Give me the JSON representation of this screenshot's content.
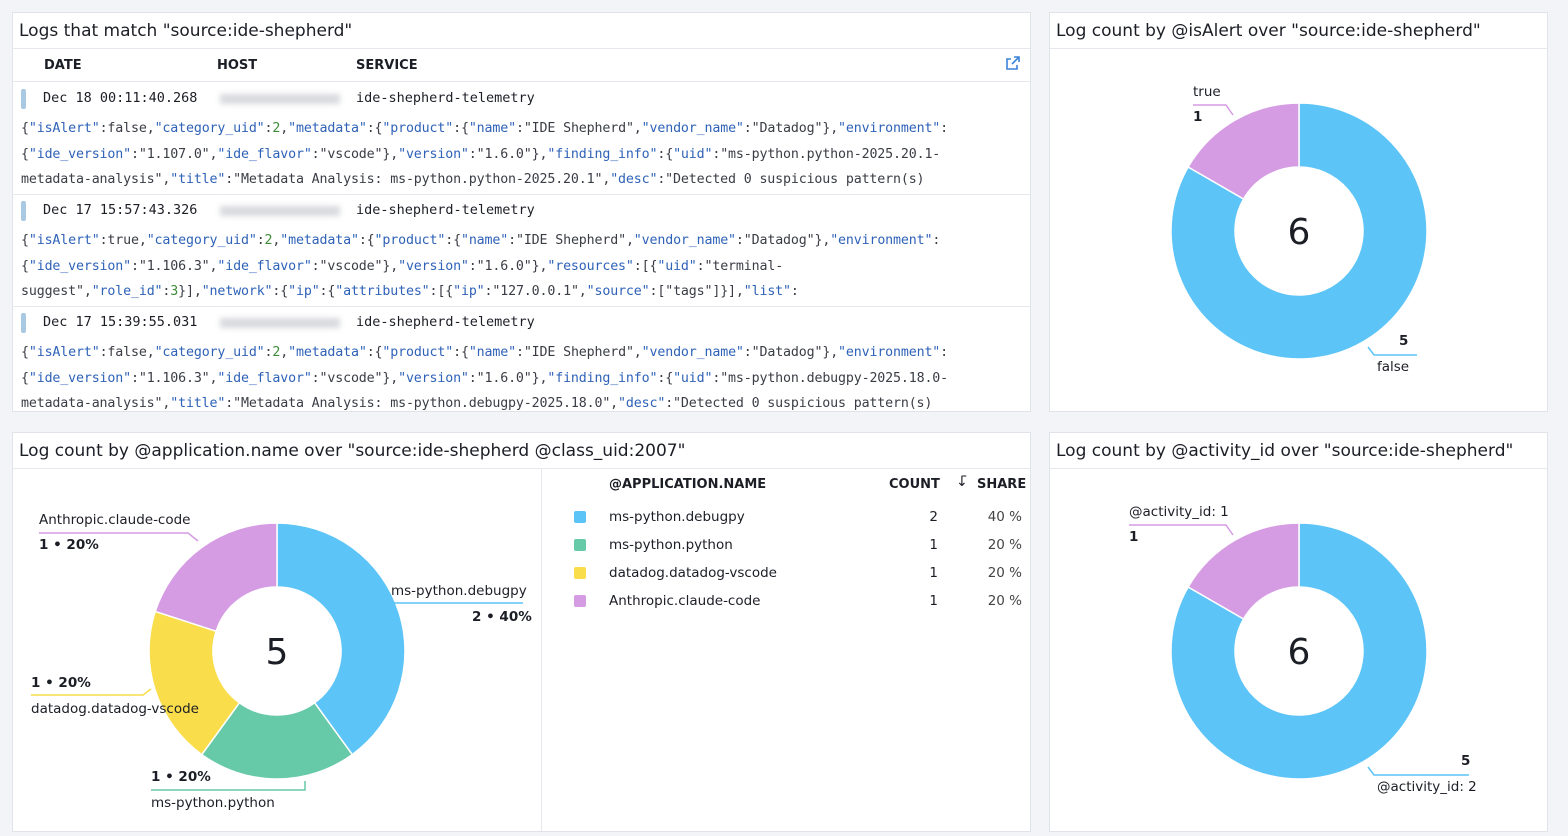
{
  "logs_panel": {
    "title": "Logs that match \"source:ide-shepherd\"",
    "columns": [
      "DATE",
      "HOST",
      "SERVICE"
    ],
    "external_icon": "external-link-icon",
    "rows": [
      {
        "date": "Dec 18 00:11:40.268",
        "service": "ide-shepherd-telemetry",
        "lines": [
          "{\"isAlert\":false,\"category_uid\":2,\"metadata\":{\"product\":{\"name\":\"IDE Shepherd\",\"vendor_name\":\"Datadog\"},\"environment\":",
          "{\"ide_version\":\"1.107.0\",\"ide_flavor\":\"vscode\"},\"version\":\"1.6.0\"},\"finding_info\":{\"uid\":\"ms-python.python-2025.20.1-",
          "metadata-analysis\",\"title\":\"Metadata Analysis: ms-python.python-2025.20.1\",\"desc\":\"Detected 0 suspicious pattern(s)"
        ]
      },
      {
        "date": "Dec 17 15:57:43.326",
        "service": "ide-shepherd-telemetry",
        "lines": [
          "{\"isAlert\":true,\"category_uid\":2,\"metadata\":{\"product\":{\"name\":\"IDE Shepherd\",\"vendor_name\":\"Datadog\"},\"environment\":",
          "{\"ide_version\":\"1.106.3\",\"ide_flavor\":\"vscode\"},\"version\":\"1.6.0\"},\"resources\":[{\"uid\":\"terminal-",
          "suggest\",\"role_id\":3}],\"network\":{\"ip\":{\"attributes\":[{\"ip\":\"127.0.0.1\",\"source\":[\"tags\"]}],\"list\":"
        ]
      },
      {
        "date": "Dec 17 15:39:55.031",
        "service": "ide-shepherd-telemetry",
        "lines": [
          "{\"isAlert\":false,\"category_uid\":2,\"metadata\":{\"product\":{\"name\":\"IDE Shepherd\",\"vendor_name\":\"Datadog\"},\"environment\":",
          "{\"ide_version\":\"1.106.3\",\"ide_flavor\":\"vscode\"},\"version\":\"1.6.0\"},\"finding_info\":{\"uid\":\"ms-python.debugpy-2025.18.0-",
          "metadata-analysis\",\"title\":\"Metadata Analysis: ms-python.debugpy-2025.18.0\",\"desc\":\"Detected 0 suspicious pattern(s)"
        ]
      }
    ]
  },
  "chart_data": [
    {
      "type": "pie",
      "title": "Log count by @isAlert over \"source:ide-shepherd\"",
      "total": "6",
      "slices": [
        {
          "label": "false",
          "value": 5,
          "color": "#5cc4f7"
        },
        {
          "label": "true",
          "value": 1,
          "color": "#d59be3"
        }
      ],
      "slice_labels": [
        {
          "name": "true",
          "value": "1"
        },
        {
          "name": "false",
          "value": "5"
        }
      ]
    },
    {
      "type": "pie",
      "title": "Log count by @application.name over \"source:ide-shepherd @class_uid:2007\"",
      "total": "5",
      "slices": [
        {
          "label": "ms-python.debugpy",
          "value": 2,
          "share": "40 %",
          "color": "#5cc4f7"
        },
        {
          "label": "ms-python.python",
          "value": 1,
          "share": "20 %",
          "color": "#66c9a8"
        },
        {
          "label": "datadog.datadog-vscode",
          "value": 1,
          "share": "20 %",
          "color": "#f9dd4a"
        },
        {
          "label": "Anthropic.claude-code",
          "value": 1,
          "share": "20 %",
          "color": "#d59be3"
        }
      ],
      "slice_labels": [
        {
          "name": "ms-python.debugpy",
          "value": "2 • 40%"
        },
        {
          "name": "ms-python.python",
          "value": "1 • 20%"
        },
        {
          "name": "datadog.datadog-vscode",
          "value": "1 • 20%"
        },
        {
          "name": "Anthropic.claude-code",
          "value": "1 • 20%"
        }
      ],
      "table": {
        "columns": [
          "@APPLICATION.NAME",
          "COUNT",
          "SHARE"
        ],
        "sort_icon": "sort-descending-icon"
      }
    },
    {
      "type": "pie",
      "title": "Log count by @activity_id over \"source:ide-shepherd\"",
      "total": "6",
      "slices": [
        {
          "label": "@activity_id: 2",
          "value": 5,
          "color": "#5cc4f7"
        },
        {
          "label": "@activity_id: 1",
          "value": 1,
          "color": "#d59be3"
        }
      ],
      "slice_labels": [
        {
          "name": "@activity_id: 1",
          "value": "1"
        },
        {
          "name": "@activity_id: 2",
          "value": "5"
        }
      ]
    }
  ]
}
